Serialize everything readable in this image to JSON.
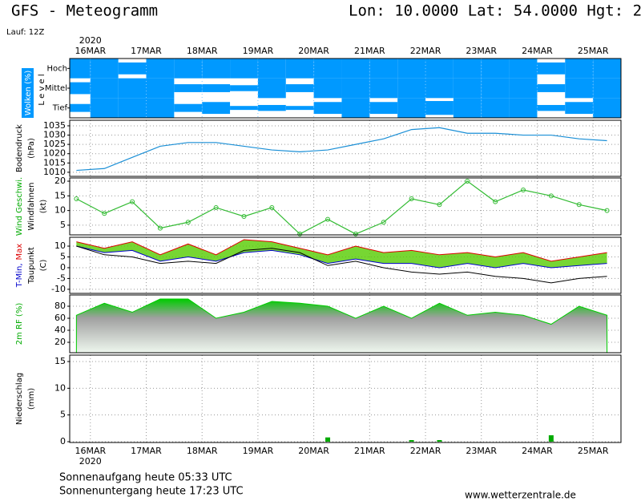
{
  "header": {
    "title": "GFS - Meteogramm",
    "location": "Lon: 10.0000 Lat: 54.0000 Hgt: 2",
    "run": "Lauf: 12Z"
  },
  "footer": {
    "sunrise": "Sonnenaufgang heute 05:33 UTC",
    "sunset": "Sonnenuntergang heute 17:23 UTC",
    "source": "www.wetterzentrale.de"
  },
  "chart_data": [
    {
      "type": "cloudmap",
      "ylabel_box": "Wolken (%)",
      "ylabel_level": "L e v e l",
      "year": "2020",
      "x": [
        15.75,
        16.25,
        16.75,
        17.25,
        17.75,
        18.25,
        18.75,
        19.25,
        19.75,
        20.25,
        20.75,
        21.25,
        21.75,
        22.25,
        22.75,
        23.25,
        23.75,
        24.25,
        24.75,
        25.25
      ],
      "xlim": [
        15.63,
        25.5
      ],
      "xticks": [
        {
          "value": 16,
          "label": "16MAR"
        },
        {
          "value": 17,
          "label": "17MAR"
        },
        {
          "value": 18,
          "label": "18MAR"
        },
        {
          "value": 19,
          "label": "19MAR"
        },
        {
          "value": 20,
          "label": "20MAR"
        },
        {
          "value": 21,
          "label": "21MAR"
        },
        {
          "value": 22,
          "label": "22MAR"
        },
        {
          "value": 23,
          "label": "23MAR"
        },
        {
          "value": 24,
          "label": "24MAR"
        },
        {
          "value": 25,
          "label": "25MAR"
        }
      ],
      "series": [
        {
          "name": "Hoch",
          "color": "#0099ff",
          "values": [
            100,
            100,
            60,
            100,
            100,
            100,
            100,
            100,
            100,
            100,
            100,
            100,
            100,
            100,
            100,
            100,
            100,
            60,
            100,
            100
          ]
        },
        {
          "name": "Mittel",
          "color": "#0099ff",
          "values": [
            60,
            100,
            100,
            100,
            40,
            40,
            30,
            100,
            40,
            100,
            100,
            100,
            100,
            100,
            100,
            100,
            100,
            40,
            100,
            100
          ]
        },
        {
          "name": "Tief",
          "color": "#0099ff",
          "values": [
            40,
            100,
            100,
            100,
            40,
            60,
            20,
            30,
            20,
            60,
            100,
            60,
            100,
            70,
            100,
            100,
            100,
            30,
            60,
            100
          ]
        }
      ]
    },
    {
      "type": "line",
      "ylabel_lines": [
        [
          {
            "text": "Bodendruck",
            "color": "#000000"
          }
        ],
        [
          {
            "text": "(hPa)",
            "color": "#000000"
          }
        ]
      ],
      "x": [
        15.75,
        16.25,
        16.75,
        17.25,
        17.75,
        18.25,
        18.75,
        19.25,
        19.75,
        20.25,
        20.75,
        21.25,
        21.75,
        22.25,
        22.75,
        23.25,
        23.75,
        24.25,
        24.75,
        25.25
      ],
      "xlim": [
        15.63,
        25.5
      ],
      "ylim": [
        1007.8,
        1038
      ],
      "yticks": [
        1010,
        1015,
        1020,
        1025,
        1030,
        1035
      ],
      "series": [
        {
          "color": "#1a8fd6",
          "values": [
            1011,
            1012,
            1018,
            1024,
            1026,
            1026,
            1024,
            1022,
            1021,
            1022,
            1025,
            1028,
            1033,
            1034,
            1031,
            1031,
            1030,
            1030,
            1028,
            1027
          ]
        }
      ]
    },
    {
      "type": "line",
      "markers": true,
      "ylabel_lines": [
        [
          {
            "text": "Wind Geschwi.",
            "color": "#00aa00"
          }
        ],
        [
          {
            "text": "Windfahnen",
            "color": "#000000"
          }
        ],
        [
          {
            "text": "(kt)",
            "color": "#000000"
          }
        ]
      ],
      "x": [
        15.75,
        16.25,
        16.75,
        17.25,
        17.75,
        18.25,
        18.75,
        19.25,
        19.75,
        20.25,
        20.75,
        21.25,
        21.75,
        22.25,
        22.75,
        23.25,
        23.75,
        24.25,
        24.75,
        25.25
      ],
      "xlim": [
        15.63,
        25.5
      ],
      "ylim": [
        1.7,
        21.1
      ],
      "yticks": [
        5,
        10,
        15,
        20
      ],
      "series": [
        {
          "color": "#33bb33",
          "values": [
            14,
            9,
            13,
            4,
            6,
            11,
            8,
            11,
            2,
            7,
            2,
            6,
            14,
            12,
            20,
            13,
            17,
            15,
            12,
            10
          ]
        }
      ]
    },
    {
      "type": "band",
      "ylabel_lines": [
        [
          {
            "text": "T-Min,",
            "color": "#0000cc"
          },
          {
            "text": "Max",
            "color": "#dd0000"
          }
        ],
        [
          {
            "text": "Taupunkt",
            "color": "#000000"
          }
        ],
        [
          {
            "text": "(C)",
            "color": "#000000"
          }
        ]
      ],
      "x": [
        15.75,
        16.25,
        16.75,
        17.25,
        17.75,
        18.25,
        18.75,
        19.25,
        19.75,
        20.25,
        20.75,
        21.25,
        21.75,
        22.25,
        22.75,
        23.25,
        23.75,
        24.25,
        24.75,
        25.25
      ],
      "xlim": [
        15.63,
        25.5
      ],
      "ylim": [
        -11.9,
        14.1
      ],
      "yticks": [
        -10,
        -5,
        0,
        5,
        10
      ],
      "fill": "#55cc00",
      "series": [
        {
          "color": "#dd0000",
          "values": [
            12,
            9,
            12,
            6,
            11,
            6,
            13,
            12,
            9,
            6,
            10,
            7,
            8,
            6,
            7,
            5,
            7,
            3,
            5,
            7
          ]
        },
        {
          "color": "#0000cc",
          "values": [
            10,
            7,
            8,
            3,
            5,
            3,
            7,
            8,
            6,
            2,
            4,
            2,
            2,
            0,
            2,
            0,
            2,
            0,
            1,
            2
          ]
        },
        {
          "color": "#000000",
          "values": [
            10,
            6,
            5,
            2,
            3,
            2,
            8,
            9,
            7,
            1,
            3,
            0,
            -2,
            -3,
            -2,
            -4,
            -5,
            -7,
            -5,
            -4
          ]
        }
      ]
    },
    {
      "type": "area",
      "ylabel_lines": [
        [
          {
            "text": "2m RF (%)",
            "color": "#00aa00"
          }
        ]
      ],
      "x": [
        15.75,
        16.25,
        16.75,
        17.25,
        17.75,
        18.25,
        18.75,
        19.25,
        19.75,
        20.25,
        20.75,
        21.25,
        21.75,
        22.25,
        22.75,
        23.25,
        23.75,
        24.25,
        24.75,
        25.25
      ],
      "xlim": [
        15.63,
        25.5
      ],
      "ylim": [
        2.7,
        98.7
      ],
      "yticks": [
        20,
        40,
        60,
        80
      ],
      "series": [
        {
          "color": "#00cc00",
          "values": [
            65,
            85,
            70,
            92,
            92,
            60,
            70,
            88,
            85,
            80,
            60,
            80,
            60,
            85,
            65,
            70,
            65,
            50,
            80,
            65
          ]
        }
      ]
    },
    {
      "type": "bar",
      "ylabel_lines": [
        [
          {
            "text": "Niederschlag",
            "color": "#000000"
          }
        ],
        [
          {
            "text": "(mm)",
            "color": "#000000"
          }
        ]
      ],
      "year": "2020",
      "x": [
        15.75,
        16.25,
        16.75,
        17.25,
        17.75,
        18.25,
        18.75,
        19.25,
        19.75,
        20.25,
        20.75,
        21.25,
        21.75,
        22.25,
        22.75,
        23.25,
        23.75,
        24.25,
        24.75,
        25.25
      ],
      "xlim": [
        15.63,
        25.5
      ],
      "ylim": [
        -0.15,
        16.2
      ],
      "yticks": [
        0,
        5,
        10,
        15
      ],
      "xticks": [
        {
          "value": 16,
          "label": "16MAR"
        },
        {
          "value": 17,
          "label": "17MAR"
        },
        {
          "value": 18,
          "label": "18MAR"
        },
        {
          "value": 19,
          "label": "19MAR"
        },
        {
          "value": 20,
          "label": "20MAR"
        },
        {
          "value": 21,
          "label": "21MAR"
        },
        {
          "value": 22,
          "label": "22MAR"
        },
        {
          "value": 23,
          "label": "23MAR"
        },
        {
          "value": 24,
          "label": "24MAR"
        },
        {
          "value": 25,
          "label": "25MAR"
        }
      ],
      "series": [
        {
          "color": "#00aa00",
          "values": [
            0,
            0,
            0,
            0,
            0,
            0,
            0,
            0,
            0,
            0.8,
            0,
            0,
            0.3,
            0.3,
            0,
            0,
            0,
            1.2,
            0,
            0
          ]
        }
      ]
    }
  ]
}
